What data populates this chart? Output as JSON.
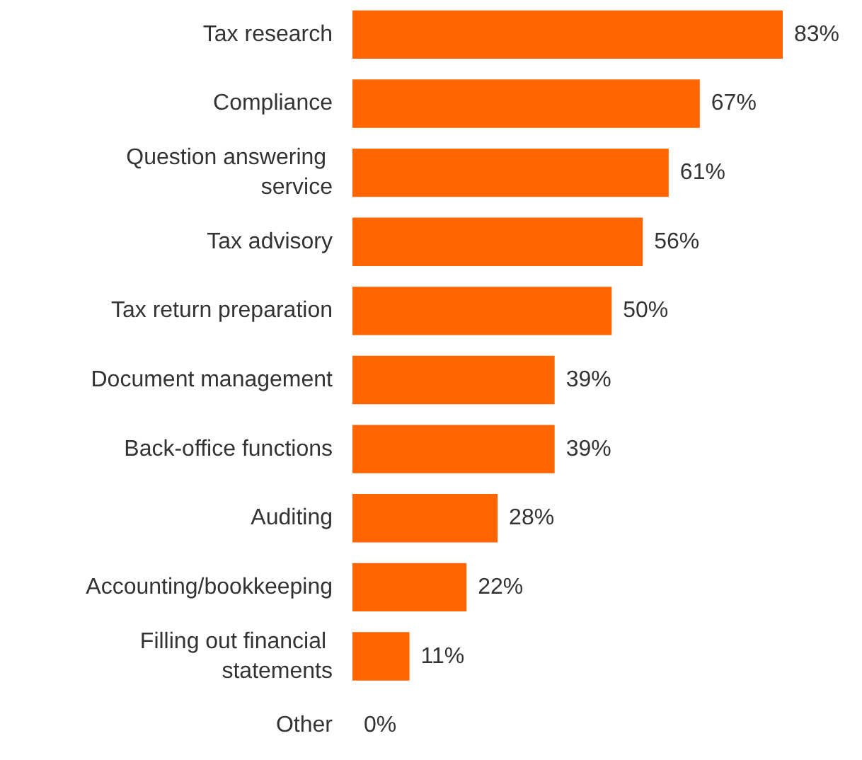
{
  "chart_data": {
    "type": "bar",
    "orientation": "horizontal",
    "color": "#ff6600",
    "categories": [
      "Tax research",
      "Compliance",
      "Question answering service",
      "Tax advisory",
      "Tax return preparation",
      "Document management",
      "Back-office functions",
      "Auditing",
      "Accounting/bookkeeping",
      "Filling out financial statements",
      "Other"
    ],
    "values": [
      83,
      67,
      61,
      56,
      50,
      39,
      39,
      28,
      22,
      11,
      0
    ],
    "value_labels": [
      "83%",
      "67%",
      "61%",
      "56%",
      "50%",
      "39%",
      "39%",
      "28%",
      "22%",
      "11%",
      "0%"
    ],
    "grid": false
  }
}
